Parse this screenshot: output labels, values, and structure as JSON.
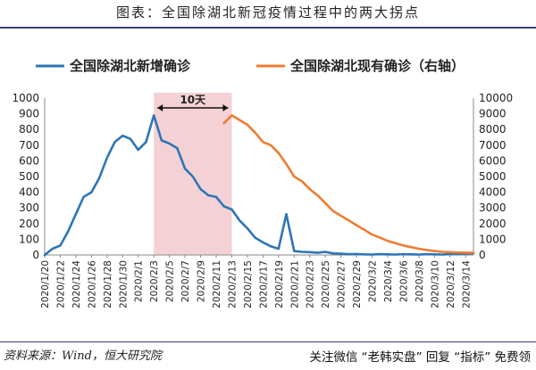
{
  "header": {
    "title": "图表：全国除湖北新冠疫情过程中的两大拐点"
  },
  "footer": {
    "source": "资料来源：Wind，恒大研究院",
    "banner": "关注微信 “老韩实盘” 回复 “指标” 免费领"
  },
  "colors": {
    "left_series": "#2e75b6",
    "right_series": "#ed7d31",
    "shade": "#f2c9cc",
    "rule": "#3a3f72"
  },
  "chart_data": {
    "type": "line",
    "legend_placement": "top",
    "annotations": [
      {
        "text": "10天",
        "x_from": "2020/2/3",
        "x_to": "2020/2/13"
      }
    ],
    "shaded_region": {
      "x_from": "2020/2/3",
      "x_to": "2020/2/13"
    },
    "x_tick_labels": [
      "2020/1/20",
      "2020/1/22",
      "2020/1/24",
      "2020/1/26",
      "2020/1/28",
      "2020/1/30",
      "2020/2/1",
      "2020/2/3",
      "2020/2/5",
      "2020/2/7",
      "2020/2/9",
      "2020/2/11",
      "2020/2/13",
      "2020/2/15",
      "2020/2/17",
      "2020/2/19",
      "2020/2/21",
      "2020/2/23",
      "2020/2/25",
      "2020/2/27",
      "2020/2/29",
      "2020/3/2",
      "2020/3/4",
      "2020/3/6",
      "2020/3/8",
      "2020/3/10",
      "2020/3/12",
      "2020/3/14"
    ],
    "xlim": [
      "2020/1/20",
      "2020/3/15"
    ],
    "y_left": {
      "ylim": [
        0,
        1000
      ],
      "ticks": [
        0,
        100,
        200,
        300,
        400,
        500,
        600,
        700,
        800,
        900,
        1000
      ]
    },
    "y_right": {
      "ylim": [
        0,
        10000
      ],
      "ticks": [
        0,
        1000,
        2000,
        3000,
        4000,
        5000,
        6000,
        7000,
        8000,
        9000,
        10000
      ]
    },
    "series": [
      {
        "name": "全国除湖北新增确诊",
        "axis": "left",
        "x": [
          "2020/1/20",
          "2020/1/21",
          "2020/1/22",
          "2020/1/23",
          "2020/1/24",
          "2020/1/25",
          "2020/1/26",
          "2020/1/27",
          "2020/1/28",
          "2020/1/29",
          "2020/1/30",
          "2020/1/31",
          "2020/2/1",
          "2020/2/2",
          "2020/2/3",
          "2020/2/4",
          "2020/2/5",
          "2020/2/6",
          "2020/2/7",
          "2020/2/8",
          "2020/2/9",
          "2020/2/10",
          "2020/2/11",
          "2020/2/12",
          "2020/2/13",
          "2020/2/14",
          "2020/2/15",
          "2020/2/16",
          "2020/2/17",
          "2020/2/18",
          "2020/2/19",
          "2020/2/20",
          "2020/2/21",
          "2020/2/22",
          "2020/2/23",
          "2020/2/24",
          "2020/2/25",
          "2020/2/26",
          "2020/2/27",
          "2020/2/28",
          "2020/2/29",
          "2020/3/1",
          "2020/3/2",
          "2020/3/3",
          "2020/3/4",
          "2020/3/5",
          "2020/3/6",
          "2020/3/7",
          "2020/3/8",
          "2020/3/9",
          "2020/3/10",
          "2020/3/11",
          "2020/3/12",
          "2020/3/13",
          "2020/3/14",
          "2020/3/15"
        ],
        "values": [
          0,
          40,
          60,
          150,
          260,
          370,
          400,
          490,
          620,
          720,
          760,
          740,
          670,
          720,
          890,
          730,
          710,
          680,
          550,
          500,
          420,
          380,
          370,
          310,
          290,
          220,
          170,
          110,
          80,
          55,
          40,
          260,
          25,
          20,
          18,
          15,
          20,
          10,
          8,
          5,
          6,
          4,
          3,
          5,
          4,
          3,
          5,
          4,
          3,
          5,
          4,
          3,
          5,
          6,
          8,
          10
        ]
      },
      {
        "name": "全国除湖北现有确诊（右轴）",
        "axis": "right",
        "x": [
          "2020/2/13",
          "2020/2/14",
          "2020/2/15",
          "2020/2/16",
          "2020/2/17",
          "2020/2/18",
          "2020/2/19",
          "2020/2/20",
          "2020/2/21",
          "2020/2/22",
          "2020/2/23",
          "2020/2/24",
          "2020/2/25",
          "2020/2/26",
          "2020/2/27",
          "2020/2/28",
          "2020/2/29",
          "2020/3/1",
          "2020/3/2",
          "2020/3/3",
          "2020/3/4",
          "2020/3/5",
          "2020/3/6",
          "2020/3/7",
          "2020/3/8",
          "2020/3/9",
          "2020/3/10",
          "2020/3/11",
          "2020/3/12",
          "2020/3/13",
          "2020/3/14",
          "2020/3/15"
        ],
        "values": [
          8900,
          8600,
          8300,
          7800,
          7200,
          7000,
          6500,
          5800,
          5000,
          4700,
          4200,
          3800,
          3300,
          2800,
          2500,
          2200,
          1900,
          1600,
          1300,
          1100,
          900,
          750,
          600,
          500,
          400,
          320,
          250,
          200,
          180,
          160,
          150,
          140
        ],
        "lead_in": {
          "x": "2020/2/12",
          "value": 8400
        }
      }
    ]
  }
}
